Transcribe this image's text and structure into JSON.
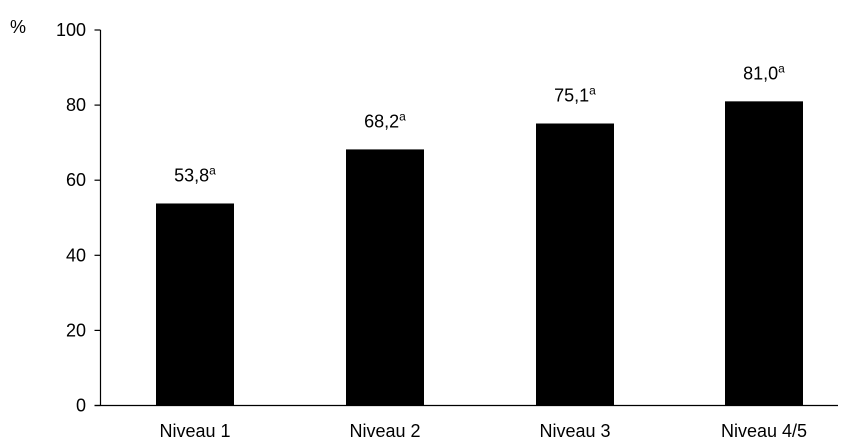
{
  "chart_data": {
    "type": "bar",
    "title": "",
    "xlabel": "",
    "ylabel": "%",
    "ylim": [
      0,
      100
    ],
    "yticks": [
      0,
      20,
      40,
      60,
      80,
      100
    ],
    "grid": false,
    "legend": "none",
    "categories": [
      "Niveau 1",
      "Niveau 2",
      "Niveau 3",
      "Niveau 4/5"
    ],
    "values": [
      53.8,
      68.2,
      75.1,
      81.0
    ],
    "value_labels": [
      "53,8",
      "68,2",
      "75,1",
      "81,0"
    ],
    "value_label_superscripts": [
      "a",
      "a",
      "a",
      "a"
    ],
    "bar_color": "#000000",
    "axis_color": "#000000"
  }
}
